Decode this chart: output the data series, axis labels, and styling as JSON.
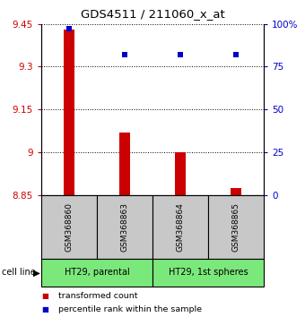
{
  "title": "GDS4511 / 211060_x_at",
  "samples": [
    "GSM368860",
    "GSM368863",
    "GSM368864",
    "GSM368865"
  ],
  "transformed_counts": [
    9.43,
    9.07,
    9.0,
    8.875
  ],
  "percentile_ranks": [
    97,
    82,
    82,
    82
  ],
  "ylim_left": [
    8.85,
    9.45
  ],
  "ylim_right": [
    0,
    100
  ],
  "yticks_left": [
    8.85,
    9.0,
    9.15,
    9.3,
    9.45
  ],
  "ytick_labels_left": [
    "8.85",
    "9",
    "9.15",
    "9.3",
    "9.45"
  ],
  "yticks_right": [
    0,
    25,
    50,
    75,
    100
  ],
  "ytick_labels_right": [
    "0",
    "25",
    "50",
    "75",
    "100%"
  ],
  "bar_color": "#cc0000",
  "dot_color": "#0000cc",
  "cell_line_groups": [
    {
      "label": "HT29, parental",
      "color": "#7be87b",
      "start": 0,
      "end": 2
    },
    {
      "label": "HT29, 1st spheres",
      "color": "#7be87b",
      "start": 2,
      "end": 4
    }
  ],
  "legend_red_label": "transformed count",
  "legend_blue_label": "percentile rank within the sample",
  "cell_line_text": "cell line",
  "sample_box_color": "#c8c8c8",
  "bar_width": 0.18
}
